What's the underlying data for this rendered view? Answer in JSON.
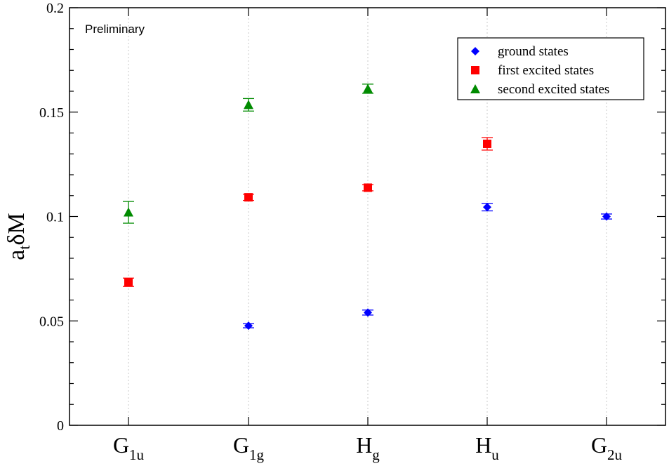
{
  "chart_data": {
    "type": "scatter",
    "title": "",
    "xlabel": "",
    "ylabel": {
      "main": "a",
      "sub": "t",
      "rest": "δM"
    },
    "ylim": [
      0,
      0.2
    ],
    "yticks": [
      "0",
      "0.05",
      "0.1",
      "0.15",
      "0.2"
    ],
    "ytick_values": [
      0,
      0.05,
      0.1,
      0.15,
      0.2
    ],
    "grid": "vertical dotted lines at categories",
    "categories": [
      {
        "base": "G",
        "sub": "1u"
      },
      {
        "base": "G",
        "sub": "1g"
      },
      {
        "base": "H",
        "sub": "g"
      },
      {
        "base": "H",
        "sub": "u"
      },
      {
        "base": "G",
        "sub": "2u"
      }
    ],
    "annotation": "Preliminary",
    "legend_position": "top-right",
    "series": [
      {
        "name": "ground states",
        "marker": "diamond",
        "color": "#0000ff",
        "points": [
          {
            "cat": 1,
            "y": 0.0477,
            "err": 0.001
          },
          {
            "cat": 2,
            "y": 0.054,
            "err": 0.0012
          },
          {
            "cat": 3,
            "y": 0.1045,
            "err": 0.0018
          },
          {
            "cat": 4,
            "y": 0.1,
            "err": 0.0012
          }
        ]
      },
      {
        "name": "first excited states",
        "marker": "square",
        "color": "#ff0000",
        "points": [
          {
            "cat": 0,
            "y": 0.0685,
            "err": 0.002
          },
          {
            "cat": 1,
            "y": 0.1092,
            "err": 0.0015
          },
          {
            "cat": 2,
            "y": 0.1138,
            "err": 0.0015
          },
          {
            "cat": 3,
            "y": 0.1348,
            "err": 0.003
          }
        ]
      },
      {
        "name": "second excited states",
        "marker": "triangle",
        "color": "#008b00",
        "points": [
          {
            "cat": 0,
            "y": 0.102,
            "err": 0.0052
          },
          {
            "cat": 1,
            "y": 0.1535,
            "err": 0.003
          },
          {
            "cat": 2,
            "y": 0.1612,
            "err": 0.0022
          }
        ]
      }
    ]
  }
}
